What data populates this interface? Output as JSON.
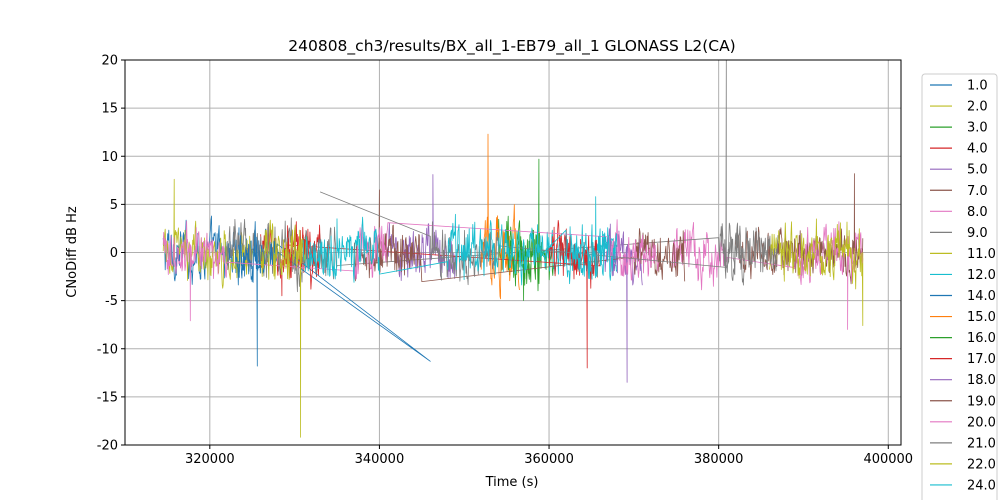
{
  "chart_data": {
    "type": "line",
    "title": "240808_ch3/results/BX_all_1-EB79_all_1 GLONASS L2(CA)",
    "xlabel": "Time (s)",
    "ylabel": "CNoDiff dB Hz",
    "xlim": [
      310000,
      401500
    ],
    "ylim": [
      -20,
      20
    ],
    "xticks": [
      320000,
      340000,
      360000,
      380000,
      400000
    ],
    "yticks": [
      -20,
      -15,
      -10,
      -5,
      0,
      5,
      10,
      15,
      20
    ],
    "grid": true,
    "legend_position": "right",
    "series": [
      {
        "name": "1.0",
        "color": "#1f77b4",
        "segments": [
          [
            314500,
            326500
          ]
        ],
        "amp": 2.2,
        "spike": [
          325600,
          -11.8
        ]
      },
      {
        "name": "2.0",
        "color": "#bcbd22",
        "segments": [
          [
            314500,
            325000
          ]
        ],
        "amp": 2.0,
        "spike": [
          315800,
          7.6
        ]
      },
      {
        "name": "3.0",
        "color": "#2ca02c",
        "segments": [
          [
            354000,
            360500
          ]
        ],
        "amp": 2.5,
        "spike": [
          358800,
          9.7
        ]
      },
      {
        "name": "4.0",
        "color": "#d62728",
        "segments": [
          [
            326000,
            333000
          ]
        ],
        "amp": 2.2,
        "spike": [
          328500,
          -4.5
        ]
      },
      {
        "name": "5.0",
        "color": "#9467bd",
        "segments": [
          [
            341000,
            349000
          ]
        ],
        "amp": 2.3,
        "spike": [
          346300,
          8.1
        ]
      },
      {
        "name": "7.0",
        "color": "#8c564b",
        "segments": [
          [
            382000,
            397000
          ]
        ],
        "amp": 2.0,
        "spike": [
          396000,
          8.2
        ]
      },
      {
        "name": "8.0",
        "color": "#e377c2",
        "segments": [
          [
            374500,
            381000
          ],
          [
            389000,
            397000
          ]
        ],
        "amp": 2.2,
        "spike": [
          395200,
          -8.0
        ]
      },
      {
        "name": "9.0",
        "color": "#7f7f7f",
        "segments": [
          [
            322000,
            335000
          ],
          [
            380000,
            383000
          ]
        ],
        "amp": 2.3,
        "spike": [
          380900,
          20
        ]
      },
      {
        "name": "11.0",
        "color": "#bcbd22",
        "segments": [
          [
            386000,
            397000
          ]
        ],
        "amp": 2.3,
        "spike": [
          397000,
          -7.6
        ]
      },
      {
        "name": "12.0",
        "color": "#17becf",
        "segments": [
          [
            359000,
            368000
          ]
        ],
        "amp": 2.0,
        "spike": [
          365500,
          5.8
        ]
      },
      {
        "name": "14.0",
        "color": "#1f77b4",
        "segments": [
          [
            323000,
            328000
          ]
        ],
        "amp": 2.2,
        "spike": [
          346000,
          -11.3
        ]
      },
      {
        "name": "15.0",
        "color": "#ff7f0e",
        "segments": [
          [
            352000,
            356500
          ]
        ],
        "amp": 3.0,
        "spike": [
          352800,
          12.3
        ]
      },
      {
        "name": "16.0",
        "color": "#2ca02c",
        "segments": [
          [
            355000,
            359000
          ]
        ],
        "amp": 2.2,
        "spike": [
          357000,
          -5.0
        ]
      },
      {
        "name": "17.0",
        "color": "#d62728",
        "segments": [
          [
            360000,
            366000
          ],
          [
            329000,
            333000
          ]
        ],
        "amp": 2.4,
        "spike": [
          364500,
          -12.0
        ]
      },
      {
        "name": "18.0",
        "color": "#9467bd",
        "segments": [
          [
            366500,
            371000
          ]
        ],
        "amp": 2.4,
        "spike": [
          369200,
          -13.5
        ]
      },
      {
        "name": "19.0",
        "color": "#8c564b",
        "segments": [
          [
            337000,
            345000
          ],
          [
            370000,
            376000
          ]
        ],
        "amp": 2.1,
        "spike": [
          340000,
          6.5
        ]
      },
      {
        "name": "20.0",
        "color": "#e377c2",
        "segments": [
          [
            314500,
            322000
          ],
          [
            337000,
            341000
          ],
          [
            367000,
            373000
          ]
        ],
        "amp": 2.1,
        "spike": [
          317700,
          -7.1
        ]
      },
      {
        "name": "21.0",
        "color": "#7f7f7f",
        "segments": [
          [
            346000,
            354000
          ],
          [
            381000,
            387000
          ]
        ],
        "amp": 2.2,
        "spike": [
          333000,
          6.3
        ]
      },
      {
        "name": "22.0",
        "color": "#bcbd22",
        "segments": [
          [
            326000,
            331500
          ]
        ],
        "amp": 2.4,
        "spike": [
          330700,
          -19.2
        ]
      },
      {
        "name": "24.0",
        "color": "#17becf",
        "segments": [
          [
            331000,
            340000
          ],
          [
            348000,
            359000
          ],
          [
            362000,
            368000
          ]
        ],
        "amp": 2.3,
        "spike": [
          335000,
          3.5
        ]
      }
    ]
  }
}
